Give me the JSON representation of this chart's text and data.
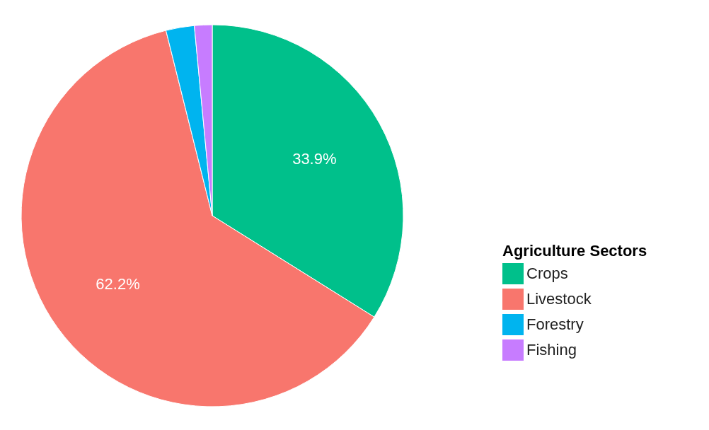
{
  "chart_data": {
    "type": "pie",
    "legend_title": "Agriculture Sectors",
    "legend": "right",
    "categories": [
      "Crops",
      "Livestock",
      "Forestry",
      "Fishing"
    ],
    "values": [
      33.9,
      62.2,
      2.4,
      1.5
    ],
    "colors": [
      "#00c08b",
      "#f8766d",
      "#00b4ef",
      "#c77cff"
    ],
    "value_labels": [
      "33.9%",
      "62.2%",
      null,
      null
    ]
  }
}
